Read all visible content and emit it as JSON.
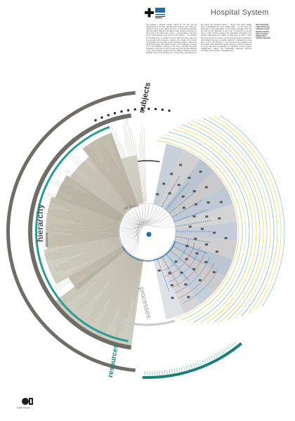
{
  "header": {
    "title": "Hospital System",
    "intro_text": "The hospital: a measure reliably created for the cure and the reinstatement of the men. Sustained and unsteady, those which are flexible in more or less visible and floors of information, materials, data and people. Therefore, the map is totally centred on the users of the system, from which some vectors — corresponding to the three sectors of the universe in the lecture of the structure — are diffused. The reading sense is oriented towards right (the text), where the processes and actors needed to it attend to as a matter of fact, and it is represented the processes and the operating subjects, which both inside the structure. The different nature of the exchanges is pointed out by the different colouring of the lines, following the radial disposition, at the end of every process you reach the area dedicated to the various human resources and the different relations between different sectors of the hospital. (It, a first specific representation of the system, that describes almost — always with radial reading sense, commitment) the scrap reading right — in first place the hierarchies of the departments or the smaller exchanges from the user and an only hierarchy of type 'tree' in 'hierarchy'; in second place a couple of lines crossing every department: the length of the columns representing the number of employees; in third of three shows the amount of resources absorbed by the specific department. Once finished the sense of reading, taking into consideration a rotten more of use of the structure, to close the line in the organization of the system, where beneath the general direction, which is structured to its end and itself is responsible for distribution of those, appear administrative, sanitary and management directions, disposed according to their relation complement areas."
  },
  "authors": [
    "Marco Bernardi",
    "Chiara Bonaventi",
    "Valentina Cerutti",
    "Daniela Giardina",
    "Elisa Guardiani",
    "Raffaele Pinto",
    "Gianluca Montella"
  ],
  "logo": {
    "caption": "Quality Hospital"
  },
  "diagram": {
    "center_label": "all flows",
    "sections": [
      {
        "id": "subjects",
        "label": "subjects",
        "color": "#2d2d2d"
      },
      {
        "id": "processes",
        "label": "processes",
        "color": "#9a9a9a"
      },
      {
        "id": "resources",
        "label": "resources",
        "color": "#1d7f79"
      },
      {
        "id": "hierarchy",
        "label": "hierarchy",
        "color": "#4f4f4f"
      }
    ],
    "hierarchy_sublabel": "universe"
  },
  "colors": {
    "hierarchy_ring": "#6f6d66",
    "hierarchy_fill": "#bab6a7",
    "resources_ring": "#1d7f79",
    "processes_ring": "#c9c9c9",
    "flow_blue": "#1f6fa8",
    "subjects_blue": "#7d97b3",
    "tan": "#b4ad9c"
  }
}
